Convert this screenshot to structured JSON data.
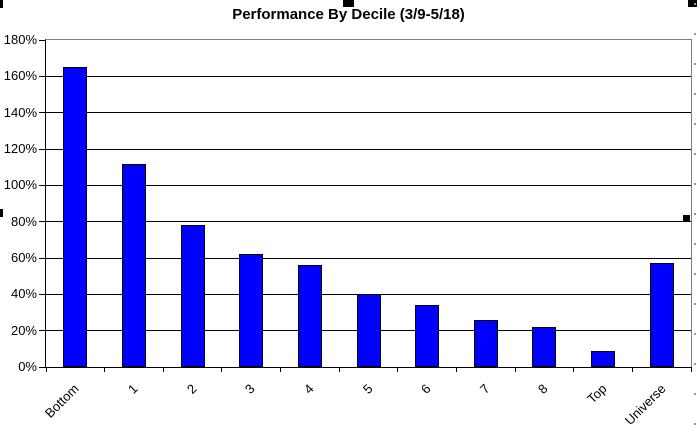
{
  "window": {
    "background": "#ffffff"
  },
  "chart_data": {
    "type": "bar",
    "title": "Performance By Decile (3/9-5/18)",
    "categories": [
      "Bottom",
      "1",
      "2",
      "3",
      "4",
      "5",
      "6",
      "7",
      "8",
      "Top",
      "Universe"
    ],
    "values": [
      165,
      112,
      78,
      62,
      56,
      40,
      34,
      26,
      22,
      9,
      57
    ],
    "unit": "%",
    "xlabel": "",
    "ylabel": "",
    "ylim": [
      0,
      180
    ],
    "ytick_step": 20,
    "ytick_labels": [
      "0%",
      "20%",
      "40%",
      "60%",
      "80%",
      "100%",
      "120%",
      "140%",
      "160%",
      "180%"
    ],
    "grid": true,
    "legend": false,
    "bar_color": "#0000ff",
    "bar_border_color": "#000000",
    "gridline_color": "#000000",
    "axis_color": "#000000",
    "plot_border_color": "#808080",
    "text_color": "#000000"
  },
  "selection": {
    "handle_color": "#000000",
    "dotted_edge_color": "#999999"
  }
}
